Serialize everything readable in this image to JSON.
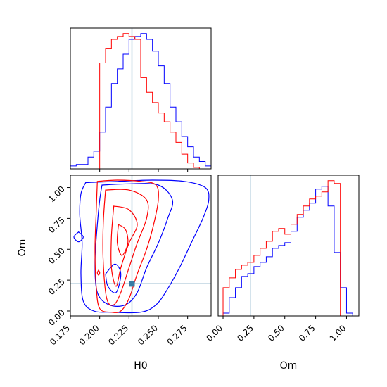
{
  "colors": {
    "series_a": "#0000ff",
    "series_b": "#ff0000",
    "truth": "#3a7ca5",
    "axes": "#000000"
  },
  "chart_data": [
    {
      "id": "h0-marginal",
      "type": "histogram",
      "xlabel": "",
      "ylabel": "",
      "xlim": [
        0.175,
        0.295
      ],
      "y_ticks_shown": false,
      "x_tick_labels_shown": false,
      "x_ticks": [
        0.2,
        0.225,
        0.25,
        0.275
      ],
      "truth_x": 0.2275,
      "bin_edges": [
        0.175,
        0.18,
        0.185,
        0.19,
        0.195,
        0.2,
        0.205,
        0.21,
        0.215,
        0.22,
        0.225,
        0.23,
        0.235,
        0.24,
        0.245,
        0.25,
        0.255,
        0.26,
        0.265,
        0.27,
        0.275,
        0.28,
        0.285,
        0.29,
        0.295
      ],
      "series": [
        {
          "color_key": "series_a",
          "values": [
            2,
            3,
            3,
            8,
            12,
            25,
            42,
            58,
            68,
            78,
            88,
            90,
            92,
            88,
            80,
            70,
            58,
            42,
            32,
            22,
            15,
            8,
            5,
            2
          ]
        },
        {
          "color_key": "series_b",
          "values": [
            0,
            0,
            0,
            0,
            0,
            72,
            82,
            88,
            90,
            92,
            90,
            88,
            62,
            52,
            45,
            38,
            32,
            25,
            18,
            10,
            4,
            1,
            0,
            0
          ]
        }
      ]
    },
    {
      "id": "om-marginal",
      "type": "histogram",
      "xlabel": "Om",
      "ylabel": "",
      "xlim": [
        -0.04,
        1.1
      ],
      "x_ticks": [
        0.0,
        0.25,
        0.5,
        0.75,
        1.0
      ],
      "x_tick_labels": [
        "0.00",
        "0.25",
        "0.50",
        "0.75",
        "1.00"
      ],
      "truth_x": 0.22,
      "bin_edges": [
        0.0,
        0.05,
        0.1,
        0.15,
        0.2,
        0.25,
        0.3,
        0.35,
        0.4,
        0.45,
        0.5,
        0.55,
        0.6,
        0.65,
        0.7,
        0.75,
        0.8,
        0.85,
        0.9,
        0.95,
        1.0,
        1.05,
        1.1
      ],
      "series": [
        {
          "color_key": "series_a",
          "values": [
            2,
            13,
            20,
            28,
            30,
            35,
            38,
            42,
            48,
            50,
            52,
            60,
            70,
            75,
            80,
            90,
            92,
            78,
            45,
            20,
            2,
            0
          ]
        },
        {
          "color_key": "series_b",
          "values": [
            20,
            27,
            33,
            36,
            38,
            43,
            48,
            53,
            60,
            62,
            58,
            65,
            72,
            78,
            83,
            85,
            88,
            96,
            94,
            0,
            0,
            0
          ]
        }
      ]
    },
    {
      "id": "h0-om-contours",
      "type": "contour",
      "xlabel": "H0",
      "ylabel": "Om",
      "xlim": [
        0.175,
        0.295
      ],
      "ylim": [
        -0.04,
        1.1
      ],
      "x_ticks": [
        0.175,
        0.2,
        0.225,
        0.25,
        0.275
      ],
      "x_tick_labels": [
        "0.175",
        "0.200",
        "0.225",
        "0.250",
        "0.275"
      ],
      "y_ticks": [
        0.0,
        0.25,
        0.5,
        0.75,
        1.0
      ],
      "y_tick_labels": [
        "0.00",
        "0.25",
        "0.50",
        "0.75",
        "1.00"
      ],
      "truth_point": [
        0.2275,
        0.22
      ],
      "series": [
        {
          "color_key": "series_a",
          "contours": [
            [
              [
                0.188,
                1.04
              ],
              [
                0.215,
                1.05
              ],
              [
                0.245,
                1.06
              ],
              [
                0.272,
                1.05
              ],
              [
                0.29,
                1.0
              ],
              [
                0.293,
                0.9
              ],
              [
                0.288,
                0.75
              ],
              [
                0.278,
                0.55
              ],
              [
                0.268,
                0.35
              ],
              [
                0.258,
                0.18
              ],
              [
                0.248,
                0.05
              ],
              [
                0.235,
                -0.01
              ],
              [
                0.21,
                -0.01
              ],
              [
                0.195,
                0.0
              ],
              [
                0.186,
                0.08
              ],
              [
                0.184,
                0.3
              ],
              [
                0.185,
                0.55
              ],
              [
                0.183,
                0.78
              ],
              [
                0.184,
                0.95
              ],
              [
                0.188,
                1.04
              ]
            ],
            [
              [
                0.202,
                1.02
              ],
              [
                0.225,
                1.03
              ],
              [
                0.25,
                1.02
              ],
              [
                0.262,
                0.9
              ],
              [
                0.258,
                0.75
              ],
              [
                0.25,
                0.55
              ],
              [
                0.24,
                0.35
              ],
              [
                0.232,
                0.15
              ],
              [
                0.222,
                0.05
              ],
              [
                0.208,
                0.05
              ],
              [
                0.198,
                0.15
              ],
              [
                0.196,
                0.4
              ],
              [
                0.198,
                0.7
              ],
              [
                0.2,
                0.9
              ],
              [
                0.202,
                1.02
              ]
            ],
            [
              [
                0.182,
                0.64
              ],
              [
                0.186,
                0.6
              ],
              [
                0.182,
                0.56
              ],
              [
                0.178,
                0.6
              ],
              [
                0.182,
                0.64
              ]
            ],
            [
              [
                0.205,
                0.3
              ],
              [
                0.207,
                0.2
              ],
              [
                0.214,
                0.15
              ],
              [
                0.218,
                0.3
              ],
              [
                0.213,
                0.38
              ],
              [
                0.205,
                0.3
              ]
            ]
          ]
        },
        {
          "color_key": "series_b",
          "contours": [
            [
              [
                0.198,
                1.05
              ],
              [
                0.215,
                1.06
              ],
              [
                0.235,
                1.05
              ],
              [
                0.248,
                1.02
              ],
              [
                0.25,
                0.9
              ],
              [
                0.246,
                0.7
              ],
              [
                0.24,
                0.5
              ],
              [
                0.232,
                0.3
              ],
              [
                0.225,
                0.1
              ],
              [
                0.218,
                0.0
              ],
              [
                0.21,
                -0.01
              ],
              [
                0.2,
                0.02
              ],
              [
                0.197,
                0.2
              ],
              [
                0.196,
                0.5
              ],
              [
                0.197,
                0.8
              ],
              [
                0.198,
                1.05
              ]
            ],
            [
              [
                0.205,
                0.98
              ],
              [
                0.225,
                0.98
              ],
              [
                0.24,
                0.9
              ],
              [
                0.24,
                0.75
              ],
              [
                0.232,
                0.55
              ],
              [
                0.225,
                0.35
              ],
              [
                0.218,
                0.15
              ],
              [
                0.212,
                0.05
              ],
              [
                0.206,
                0.1
              ],
              [
                0.203,
                0.4
              ],
              [
                0.203,
                0.7
              ],
              [
                0.205,
                0.98
              ]
            ],
            [
              [
                0.212,
                0.85
              ],
              [
                0.225,
                0.82
              ],
              [
                0.232,
                0.7
              ],
              [
                0.225,
                0.55
              ],
              [
                0.218,
                0.35
              ],
              [
                0.214,
                0.2
              ],
              [
                0.21,
                0.35
              ],
              [
                0.21,
                0.6
              ],
              [
                0.212,
                0.85
              ]
            ],
            [
              [
                0.216,
                0.7
              ],
              [
                0.222,
                0.66
              ],
              [
                0.224,
                0.55
              ],
              [
                0.219,
                0.45
              ],
              [
                0.215,
                0.55
              ],
              [
                0.216,
                0.7
              ]
            ],
            [
              [
                0.199,
                0.33
              ],
              [
                0.2,
                0.31
              ],
              [
                0.199,
                0.29
              ],
              [
                0.198,
                0.31
              ],
              [
                0.199,
                0.33
              ]
            ]
          ]
        }
      ]
    }
  ]
}
